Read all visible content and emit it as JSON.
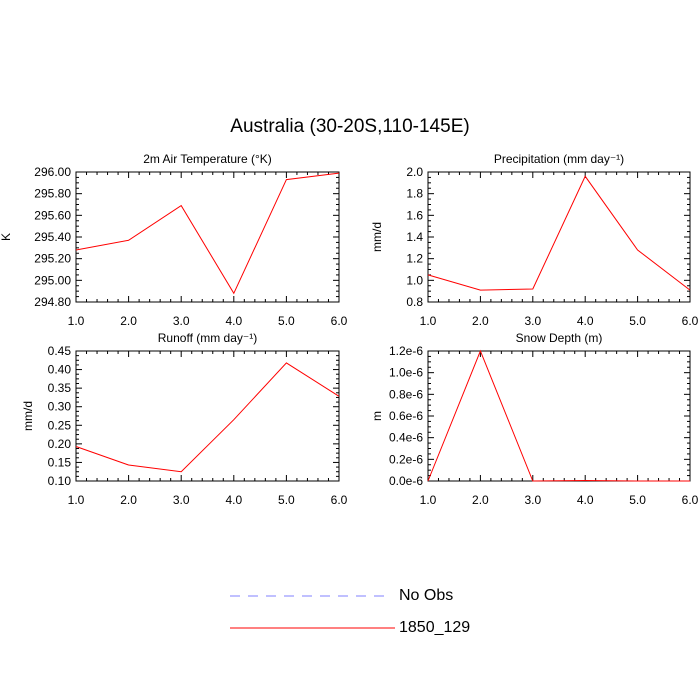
{
  "title": "Australia (30-20S,110-145E)",
  "colors": {
    "model": "#ff0000",
    "obs": "#8080ff",
    "axis": "#000000"
  },
  "legend": [
    {
      "label": "No Obs",
      "style": "dashed",
      "color": "#8080ff"
    },
    {
      "label": "1850_129",
      "style": "solid",
      "color": "#ff0000"
    }
  ],
  "chart_data": [
    {
      "type": "line",
      "title": "2m Air Temperature (°K)",
      "ylabel": "K",
      "xlabel": "",
      "xlim": [
        1,
        6
      ],
      "ylim": [
        294.8,
        296.0
      ],
      "xticks": [
        "1.0",
        "2.0",
        "3.0",
        "4.0",
        "5.0",
        "6.0"
      ],
      "yticks": [
        "294.80",
        "295.00",
        "295.20",
        "295.40",
        "295.60",
        "295.80",
        "296.00"
      ],
      "series": [
        {
          "name": "1850_129",
          "x": [
            1,
            2,
            3,
            4,
            5,
            6
          ],
          "y": [
            295.28,
            295.37,
            295.69,
            294.88,
            295.93,
            295.99
          ]
        }
      ]
    },
    {
      "type": "line",
      "title": "Precipitation (mm day⁻¹)",
      "ylabel": "mm/d",
      "xlabel": "",
      "xlim": [
        1,
        6
      ],
      "ylim": [
        0.8,
        2.0
      ],
      "xticks": [
        "1.0",
        "2.0",
        "3.0",
        "4.0",
        "5.0",
        "6.0"
      ],
      "yticks": [
        "0.8",
        "1.0",
        "1.2",
        "1.4",
        "1.6",
        "1.8",
        "2.0"
      ],
      "series": [
        {
          "name": "1850_129",
          "x": [
            1,
            2,
            3,
            4,
            5,
            6
          ],
          "y": [
            1.05,
            0.91,
            0.92,
            1.96,
            1.28,
            0.91
          ]
        }
      ]
    },
    {
      "type": "line",
      "title": "Runoff (mm day⁻¹)",
      "ylabel": "mm/d",
      "xlabel": "",
      "xlim": [
        1,
        6
      ],
      "ylim": [
        0.1,
        0.45
      ],
      "xticks": [
        "1.0",
        "2.0",
        "3.0",
        "4.0",
        "5.0",
        "6.0"
      ],
      "yticks": [
        "0.10",
        "0.15",
        "0.20",
        "0.25",
        "0.30",
        "0.35",
        "0.40",
        "0.45"
      ],
      "series": [
        {
          "name": "1850_129",
          "x": [
            1,
            2,
            3,
            4,
            5,
            6
          ],
          "y": [
            0.193,
            0.143,
            0.125,
            0.265,
            0.418,
            0.328
          ]
        }
      ]
    },
    {
      "type": "line",
      "title": "Snow Depth (m)",
      "ylabel": "m",
      "xlabel": "",
      "xlim": [
        1,
        6
      ],
      "ylim": [
        0,
        1.2e-06
      ],
      "xticks": [
        "1.0",
        "2.0",
        "3.0",
        "4.0",
        "5.0",
        "6.0"
      ],
      "yticks": [
        "0.0e-6",
        "0.2e-6",
        "0.4e-6",
        "0.6e-6",
        "0.8e-6",
        "1.0e-6",
        "1.2e-6"
      ],
      "series": [
        {
          "name": "1850_129",
          "x": [
            1,
            2,
            3,
            4,
            5,
            6
          ],
          "y": [
            0,
            1.2e-06,
            0,
            5e-09,
            0,
            0
          ]
        }
      ]
    }
  ]
}
